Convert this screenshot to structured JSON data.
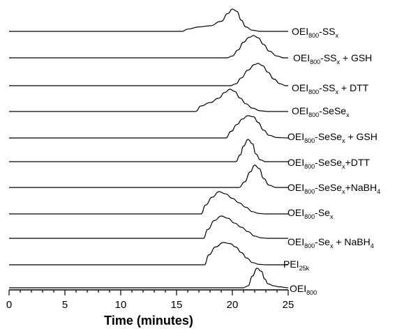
{
  "chart_data": {
    "type": "line",
    "xlabel": "Time (minutes)",
    "ylabel": "",
    "xlim": [
      0,
      25
    ],
    "xticks": [
      0,
      5,
      10,
      15,
      20,
      25
    ],
    "grid": false,
    "legend": "labels at right end of each trace",
    "series": [
      {
        "label": [
          {
            "t": "OEI"
          },
          {
            "t": "800",
            "s": "sub"
          },
          {
            "t": "-SS"
          },
          {
            "t": "x",
            "s": "sub"
          }
        ],
        "points": [
          [
            0,
            0
          ],
          [
            15.5,
            0
          ],
          [
            16.0,
            0.1
          ],
          [
            17.0,
            0.2
          ],
          [
            18.0,
            0.25
          ],
          [
            19.0,
            0.45
          ],
          [
            19.6,
            0.8
          ],
          [
            20.0,
            1.0
          ],
          [
            20.4,
            0.9
          ],
          [
            20.8,
            0.5
          ],
          [
            21.2,
            0.2
          ],
          [
            21.8,
            0.05
          ],
          [
            22.5,
            0
          ],
          [
            25,
            0
          ]
        ]
      },
      {
        "label": [
          {
            "t": "OEI"
          },
          {
            "t": "800",
            "s": "sub"
          },
          {
            "t": "-SS"
          },
          {
            "t": "x",
            "s": "sub"
          },
          {
            "t": " + GSH"
          }
        ],
        "points": [
          [
            0,
            0
          ],
          [
            19.5,
            0
          ],
          [
            20.0,
            0.08
          ],
          [
            20.5,
            0.35
          ],
          [
            21.0,
            0.7
          ],
          [
            21.5,
            0.92
          ],
          [
            21.9,
            1.0
          ],
          [
            22.3,
            0.9
          ],
          [
            22.8,
            0.6
          ],
          [
            23.3,
            0.3
          ],
          [
            24.0,
            0.08
          ],
          [
            24.6,
            0
          ],
          [
            25,
            0
          ]
        ]
      },
      {
        "label": [
          {
            "t": "OEI"
          },
          {
            "t": "800",
            "s": "sub"
          },
          {
            "t": "-SS"
          },
          {
            "t": "x",
            "s": "sub"
          },
          {
            "t": " + DTT"
          }
        ],
        "points": [
          [
            0,
            0
          ],
          [
            19.8,
            0
          ],
          [
            20.3,
            0.08
          ],
          [
            20.8,
            0.35
          ],
          [
            21.4,
            0.7
          ],
          [
            22.0,
            0.95
          ],
          [
            22.3,
            1.0
          ],
          [
            22.7,
            0.9
          ],
          [
            23.2,
            0.6
          ],
          [
            23.7,
            0.3
          ],
          [
            24.3,
            0.08
          ],
          [
            24.8,
            0
          ],
          [
            25,
            0
          ]
        ]
      },
      {
        "label": [
          {
            "t": "OEI"
          },
          {
            "t": "800",
            "s": "sub"
          },
          {
            "t": "-SeSe"
          },
          {
            "t": "x",
            "s": "sub"
          }
        ],
        "points": [
          [
            0,
            0
          ],
          [
            16.7,
            0
          ],
          [
            17.2,
            0.25
          ],
          [
            18.0,
            0.4
          ],
          [
            18.8,
            0.6
          ],
          [
            19.3,
            0.85
          ],
          [
            19.8,
            1.0
          ],
          [
            20.2,
            0.9
          ],
          [
            20.7,
            0.6
          ],
          [
            21.2,
            0.35
          ],
          [
            21.8,
            0.15
          ],
          [
            22.5,
            0.03
          ],
          [
            23.2,
            0
          ],
          [
            25,
            0
          ]
        ]
      },
      {
        "label": [
          {
            "t": "OEI"
          },
          {
            "t": "800",
            "s": "sub"
          },
          {
            "t": "-SeSe"
          },
          {
            "t": "x",
            "s": "sub"
          },
          {
            "t": " + GSH"
          }
        ],
        "points": [
          [
            0,
            0
          ],
          [
            19.4,
            0
          ],
          [
            19.9,
            0.3
          ],
          [
            20.4,
            0.6
          ],
          [
            20.9,
            0.85
          ],
          [
            21.4,
            1.0
          ],
          [
            21.9,
            0.95
          ],
          [
            22.3,
            0.7
          ],
          [
            22.8,
            0.35
          ],
          [
            23.3,
            0.12
          ],
          [
            24.0,
            0.02
          ],
          [
            25,
            0
          ]
        ]
      },
      {
        "label": [
          {
            "t": "OEI"
          },
          {
            "t": "800",
            "s": "sub"
          },
          {
            "t": "-SeSe"
          },
          {
            "t": "x",
            "s": "sub"
          },
          {
            "t": "+DTT"
          }
        ],
        "points": [
          [
            0,
            0
          ],
          [
            20.3,
            0
          ],
          [
            20.7,
            0.3
          ],
          [
            21.0,
            0.7
          ],
          [
            21.4,
            1.0
          ],
          [
            21.8,
            0.8
          ],
          [
            22.1,
            0.35
          ],
          [
            22.5,
            0.08
          ],
          [
            23.0,
            0
          ],
          [
            25,
            0
          ]
        ]
      },
      {
        "label": [
          {
            "t": "OEI"
          },
          {
            "t": "800",
            "s": "sub"
          },
          {
            "t": "-SeSe"
          },
          {
            "t": "x",
            "s": "sub"
          },
          {
            "t": "+NaBH"
          },
          {
            "t": "4",
            "s": "sub"
          }
        ],
        "points": [
          [
            0,
            0
          ],
          [
            20.6,
            0
          ],
          [
            21.1,
            0.25
          ],
          [
            21.6,
            0.7
          ],
          [
            22.0,
            1.0
          ],
          [
            22.4,
            0.85
          ],
          [
            22.8,
            0.4
          ],
          [
            23.3,
            0.1
          ],
          [
            23.9,
            0
          ],
          [
            25,
            0
          ]
        ]
      },
      {
        "label": [
          {
            "t": "OEI"
          },
          {
            "t": "800",
            "s": "sub"
          },
          {
            "t": "-Se"
          },
          {
            "t": "x",
            "s": "sub"
          }
        ],
        "points": [
          [
            0,
            0
          ],
          [
            17.2,
            0
          ],
          [
            17.6,
            0.4
          ],
          [
            18.2,
            0.75
          ],
          [
            18.8,
            1.0
          ],
          [
            19.4,
            0.9
          ],
          [
            20.0,
            0.7
          ],
          [
            20.6,
            0.5
          ],
          [
            21.2,
            0.3
          ],
          [
            21.8,
            0.1
          ],
          [
            22.4,
            0.02
          ],
          [
            23.0,
            0
          ],
          [
            25,
            0
          ]
        ]
      },
      {
        "label": [
          {
            "t": "OEI"
          },
          {
            "t": "800",
            "s": "sub"
          },
          {
            "t": "-Se"
          },
          {
            "t": "x",
            "s": "sub"
          },
          {
            "t": " + NaBH"
          },
          {
            "t": "4",
            "s": "sub"
          }
        ],
        "points": [
          [
            0,
            0
          ],
          [
            17.4,
            0
          ],
          [
            17.8,
            0.4
          ],
          [
            18.4,
            0.8
          ],
          [
            19.0,
            1.0
          ],
          [
            19.6,
            0.9
          ],
          [
            20.2,
            0.68
          ],
          [
            20.8,
            0.5
          ],
          [
            21.4,
            0.3
          ],
          [
            22.0,
            0.1
          ],
          [
            22.6,
            0.02
          ],
          [
            23.2,
            0
          ],
          [
            25,
            0
          ]
        ]
      },
      {
        "label": [
          {
            "t": "PEI"
          },
          {
            "t": "25k",
            "s": "sub"
          }
        ],
        "points": [
          [
            0,
            0
          ],
          [
            17.5,
            0
          ],
          [
            17.9,
            0.45
          ],
          [
            18.5,
            0.8
          ],
          [
            19.2,
            1.0
          ],
          [
            19.8,
            0.95
          ],
          [
            20.3,
            0.8
          ],
          [
            20.8,
            0.55
          ],
          [
            21.3,
            0.3
          ],
          [
            21.8,
            0.1
          ],
          [
            22.4,
            0.02
          ],
          [
            23.0,
            0
          ],
          [
            25,
            0
          ]
        ]
      },
      {
        "label": [
          {
            "t": "OEI"
          },
          {
            "t": "800",
            "s": "sub"
          }
        ],
        "points": [
          [
            0,
            0
          ],
          [
            21.0,
            0
          ],
          [
            21.4,
            0.1
          ],
          [
            21.8,
            0.6
          ],
          [
            22.2,
            1.0
          ],
          [
            22.6,
            0.85
          ],
          [
            22.9,
            0.45
          ],
          [
            23.2,
            0.2
          ],
          [
            23.7,
            0.1
          ],
          [
            24.2,
            0.05
          ],
          [
            25,
            0
          ]
        ]
      }
    ]
  }
}
